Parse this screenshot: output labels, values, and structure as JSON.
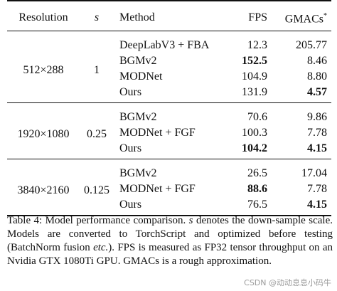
{
  "table": {
    "headers": {
      "resolution": "Resolution",
      "s": "s",
      "method": "Method",
      "fps": "FPS",
      "gmacs": "GMACs*"
    },
    "groups": [
      {
        "resolution": "512×288",
        "s": "1",
        "rows": [
          {
            "method": "DeepLabV3 + FBA",
            "fps": "12.3",
            "gmacs": "205.77",
            "fps_bold": false,
            "gmacs_bold": false
          },
          {
            "method": "BGMv2",
            "fps": "152.5",
            "gmacs": "8.46",
            "fps_bold": true,
            "gmacs_bold": false
          },
          {
            "method": "MODNet",
            "fps": "104.9",
            "gmacs": "8.80",
            "fps_bold": false,
            "gmacs_bold": false
          },
          {
            "method": "Ours",
            "fps": "131.9",
            "gmacs": "4.57",
            "fps_bold": false,
            "gmacs_bold": true
          }
        ]
      },
      {
        "resolution": "1920×1080",
        "s": "0.25",
        "rows": [
          {
            "method": "BGMv2",
            "fps": "70.6",
            "gmacs": "9.86",
            "fps_bold": false,
            "gmacs_bold": false
          },
          {
            "method": "MODNet + FGF",
            "fps": "100.3",
            "gmacs": "7.78",
            "fps_bold": false,
            "gmacs_bold": false
          },
          {
            "method": "Ours",
            "fps": "104.2",
            "gmacs": "4.15",
            "fps_bold": true,
            "gmacs_bold": true
          }
        ]
      },
      {
        "resolution": "3840×2160",
        "s": "0.125",
        "rows": [
          {
            "method": "BGMv2",
            "fps": "26.5",
            "gmacs": "17.04",
            "fps_bold": false,
            "gmacs_bold": false
          },
          {
            "method": "MODNet + FGF",
            "fps": "88.6",
            "gmacs": "7.78",
            "fps_bold": true,
            "gmacs_bold": false
          },
          {
            "method": "Ours",
            "fps": "76.5",
            "gmacs": "4.15",
            "fps_bold": false,
            "gmacs_bold": true
          }
        ]
      }
    ]
  },
  "caption": {
    "part1": "Table 4: Model performance comparison. ",
    "s_symbol": "s",
    "part2": " denotes the down-sample scale. Models are converted to TorchScript and optimized before testing (BatchNorm fusion ",
    "etc": "etc.",
    "part3": "). FPS is measured as FP32 tensor throughput on an Nvidia GTX 1080Ti GPU. GMACs is a rough approximation."
  },
  "watermark": "CSDN @动动息息小码牛"
}
